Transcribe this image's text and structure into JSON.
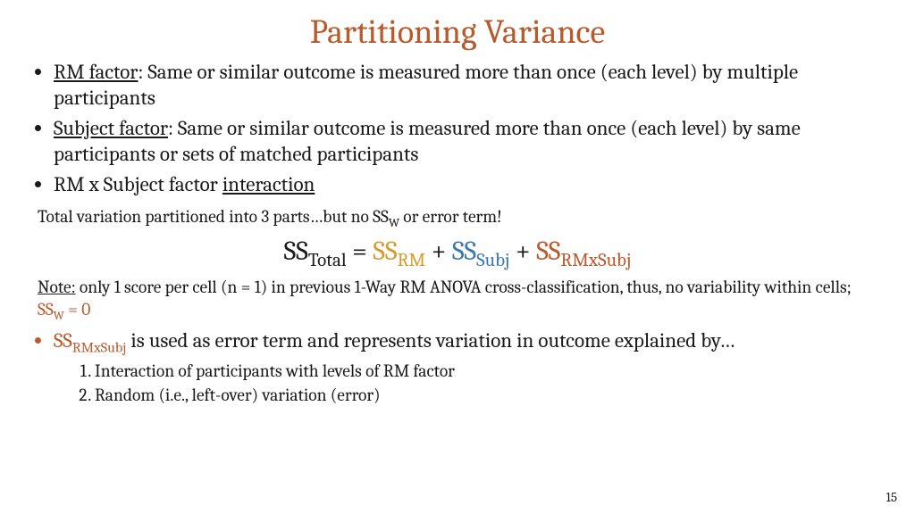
{
  "colors": {
    "title": "#b85a2b",
    "text": "#1a1a1a",
    "ss_total": "#1a1a1a",
    "ss_rm": "#d69a2d",
    "ss_subj": "#3a78b5",
    "ss_rmxsubj": "#b85a2b",
    "ss_w": "#b85a2b",
    "bullet_accent": "#b85a2b"
  },
  "title": "Partitioning Variance",
  "bullets": {
    "b1_label": "RM factor",
    "b1_rest": ": Same or similar outcome is measured more than once (each level) by multiple participants",
    "b2_label": "Subject factor",
    "b2_rest": ": Same or similar outcome is measured more than once (each level) by same participants or sets of matched participants",
    "b3_pre": "RM x Subject factor ",
    "b3_label": "interaction"
  },
  "line_partition_pre": "Total variation partitioned into 3 parts…but no SS",
  "line_partition_sub": "W",
  "line_partition_post": " or error term!",
  "equation": {
    "ss": "SS",
    "total_sub": "Total",
    "rm_sub": "RM",
    "subj_sub": "Subj",
    "rmxsubj_sub": "RMxSubj",
    "eq": " = ",
    "plus": " + "
  },
  "note": {
    "label": "Note:",
    "body_pre": " only 1 score per cell (n = 1) in previous 1-Way RM ANOVA cross-classification, thus, no variability within cells; ",
    "ssw": "SS",
    "ssw_sub": "W",
    "ssw_eq": " = 0"
  },
  "error_bullet": {
    "ss": "SS",
    "ss_sub": "RMxSubj",
    "rest": " is used as error term and represents variation in outcome explained by…"
  },
  "inner_list": {
    "i1": "Interaction of participants with levels of RM factor",
    "i2": "Random (i.e., left-over) variation (error)"
  },
  "page_number": "15"
}
